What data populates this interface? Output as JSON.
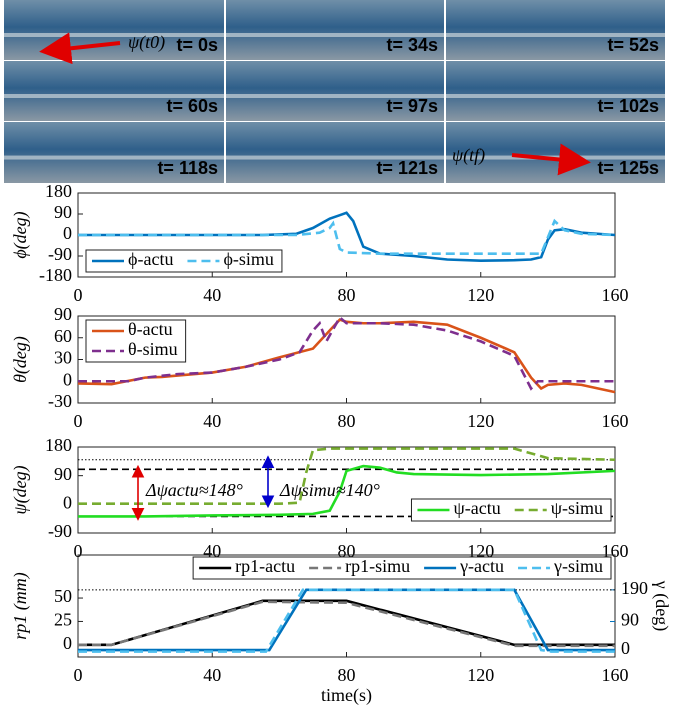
{
  "photos": {
    "labels": [
      "t= 0s",
      "t= 34s",
      "t= 52s",
      "t= 60s",
      "t= 97s",
      "t= 102s",
      "t= 118s",
      "t= 121s",
      "t= 125s"
    ],
    "annotations": [
      "ψ(t0)",
      "ψ(tf)"
    ]
  },
  "chart_data": [
    {
      "type": "line",
      "ylabel": "ϕ(deg)",
      "xlim": [
        0,
        160
      ],
      "xticks": [
        0,
        40,
        80,
        120,
        160
      ],
      "ylim": [
        -180,
        180
      ],
      "yticks": [
        180,
        90,
        0,
        -90,
        -180
      ],
      "legend": "lower left",
      "series": [
        {
          "name": "ϕ-actu",
          "color": "#0072BD",
          "dash": false,
          "x": [
            0,
            55,
            65,
            70,
            75,
            78,
            80,
            82,
            85,
            90,
            100,
            110,
            120,
            130,
            135,
            138,
            140,
            142,
            145,
            150,
            160
          ],
          "values": [
            0,
            0,
            5,
            30,
            70,
            85,
            95,
            60,
            -50,
            -80,
            -90,
            -105,
            -110,
            -108,
            -105,
            -95,
            -20,
            20,
            25,
            10,
            0
          ]
        },
        {
          "name": "ϕ-simu",
          "color": "#4DBEEE",
          "dash": true,
          "x": [
            0,
            65,
            72,
            75,
            76,
            78,
            80,
            90,
            130,
            138,
            142,
            145,
            150,
            160
          ],
          "values": [
            0,
            0,
            10,
            30,
            50,
            -60,
            -75,
            -80,
            -80,
            -80,
            60,
            20,
            5,
            0
          ]
        }
      ]
    },
    {
      "type": "line",
      "ylabel": "θ(deg)",
      "xlim": [
        0,
        160
      ],
      "xticks": [
        0,
        40,
        80,
        120,
        160
      ],
      "ylim": [
        -30,
        90
      ],
      "yticks": [
        90,
        60,
        30,
        0,
        -30
      ],
      "legend": "upper left",
      "series": [
        {
          "name": "θ-actu",
          "color": "#D95319",
          "dash": false,
          "x": [
            0,
            10,
            20,
            25,
            30,
            40,
            50,
            60,
            70,
            75,
            78,
            80,
            85,
            90,
            100,
            110,
            120,
            130,
            135,
            138,
            140,
            145,
            150,
            160
          ],
          "values": [
            -3,
            -4,
            5,
            6,
            8,
            12,
            20,
            33,
            45,
            70,
            85,
            82,
            80,
            80,
            82,
            78,
            60,
            40,
            5,
            -10,
            -5,
            -3,
            -5,
            -15
          ]
        },
        {
          "name": "θ-simu",
          "color": "#7E2F8E",
          "dash": true,
          "x": [
            0,
            15,
            20,
            30,
            40,
            50,
            60,
            66,
            70,
            72,
            74,
            78,
            80,
            90,
            100,
            110,
            120,
            130,
            135,
            137,
            140,
            160
          ],
          "values": [
            0,
            0,
            5,
            10,
            12,
            20,
            30,
            40,
            70,
            80,
            55,
            88,
            80,
            80,
            78,
            70,
            55,
            35,
            -10,
            0,
            0,
            0
          ]
        }
      ]
    },
    {
      "type": "line",
      "ylabel": "ψ(deg)",
      "xlim": [
        0,
        160
      ],
      "xticks": [
        0,
        40,
        80,
        120,
        160
      ],
      "ylim": [
        -90,
        180
      ],
      "yticks": [
        180,
        90,
        0,
        -90
      ],
      "legend": "lower right",
      "hlines": [
        {
          "value": 140,
          "style": "dotted"
        },
        {
          "value": 110,
          "style": "dashed"
        },
        {
          "value": -38,
          "style": "dashed"
        }
      ],
      "annotations": [
        {
          "text": "Δψactu≈148°",
          "color": "#e00000"
        },
        {
          "text": "Δψsimu≈140°",
          "color": "#0000cc"
        }
      ],
      "series": [
        {
          "name": "ψ-actu",
          "color": "#22dd22",
          "dash": false,
          "x": [
            0,
            20,
            40,
            60,
            70,
            75,
            78,
            80,
            85,
            90,
            95,
            100,
            120,
            140,
            160
          ],
          "values": [
            -38,
            -38,
            -35,
            -33,
            -30,
            -20,
            40,
            105,
            120,
            115,
            100,
            95,
            92,
            95,
            105
          ]
        },
        {
          "name": "ψ-simu",
          "color": "#77AC30",
          "dash": true,
          "x": [
            0,
            60,
            66,
            68,
            70,
            75,
            130,
            135,
            140,
            160
          ],
          "values": [
            2,
            2,
            5,
            100,
            170,
            175,
            175,
            160,
            145,
            140
          ]
        }
      ]
    },
    {
      "type": "line",
      "ylabel": "rp1 (mm)",
      "y2label": "γ (deg)",
      "xlabel": "time(s)",
      "xlim": [
        0,
        160
      ],
      "xticks": [
        0,
        40,
        80,
        120,
        160
      ],
      "ylim": [
        -13,
        96
      ],
      "yticks": [
        0,
        25,
        50
      ],
      "y2lim": [
        -22,
        300
      ],
      "y2ticks": [
        0,
        90,
        190
      ],
      "y2color": "#0072BD",
      "legend": "upper right",
      "hlines": [
        {
          "value": 190,
          "style": "dotted",
          "axis": "y2"
        }
      ],
      "series": [
        {
          "name": "rp1-actu",
          "color": "#000000",
          "dash": false,
          "x": [
            0,
            10,
            55,
            80,
            130,
            160
          ],
          "values": [
            0,
            0,
            47,
            47,
            0,
            0
          ]
        },
        {
          "name": "rp1-simu",
          "color": "#777777",
          "dash": true,
          "x": [
            0,
            10,
            55,
            80,
            130,
            160
          ],
          "values": [
            0,
            0,
            46,
            45,
            -1,
            -1
          ]
        },
        {
          "name": "γ-actu",
          "color": "#0072BD",
          "dash": false,
          "axis": "y2",
          "x": [
            0,
            57,
            68,
            130,
            140,
            160
          ],
          "values": [
            0,
            0,
            190,
            190,
            0,
            0
          ]
        },
        {
          "name": "γ-simu",
          "color": "#4DBEEE",
          "dash": true,
          "axis": "y2",
          "x": [
            0,
            56,
            67,
            130,
            138,
            141,
            160
          ],
          "values": [
            -5,
            -5,
            190,
            190,
            0,
            -5,
            -5
          ]
        }
      ]
    }
  ]
}
